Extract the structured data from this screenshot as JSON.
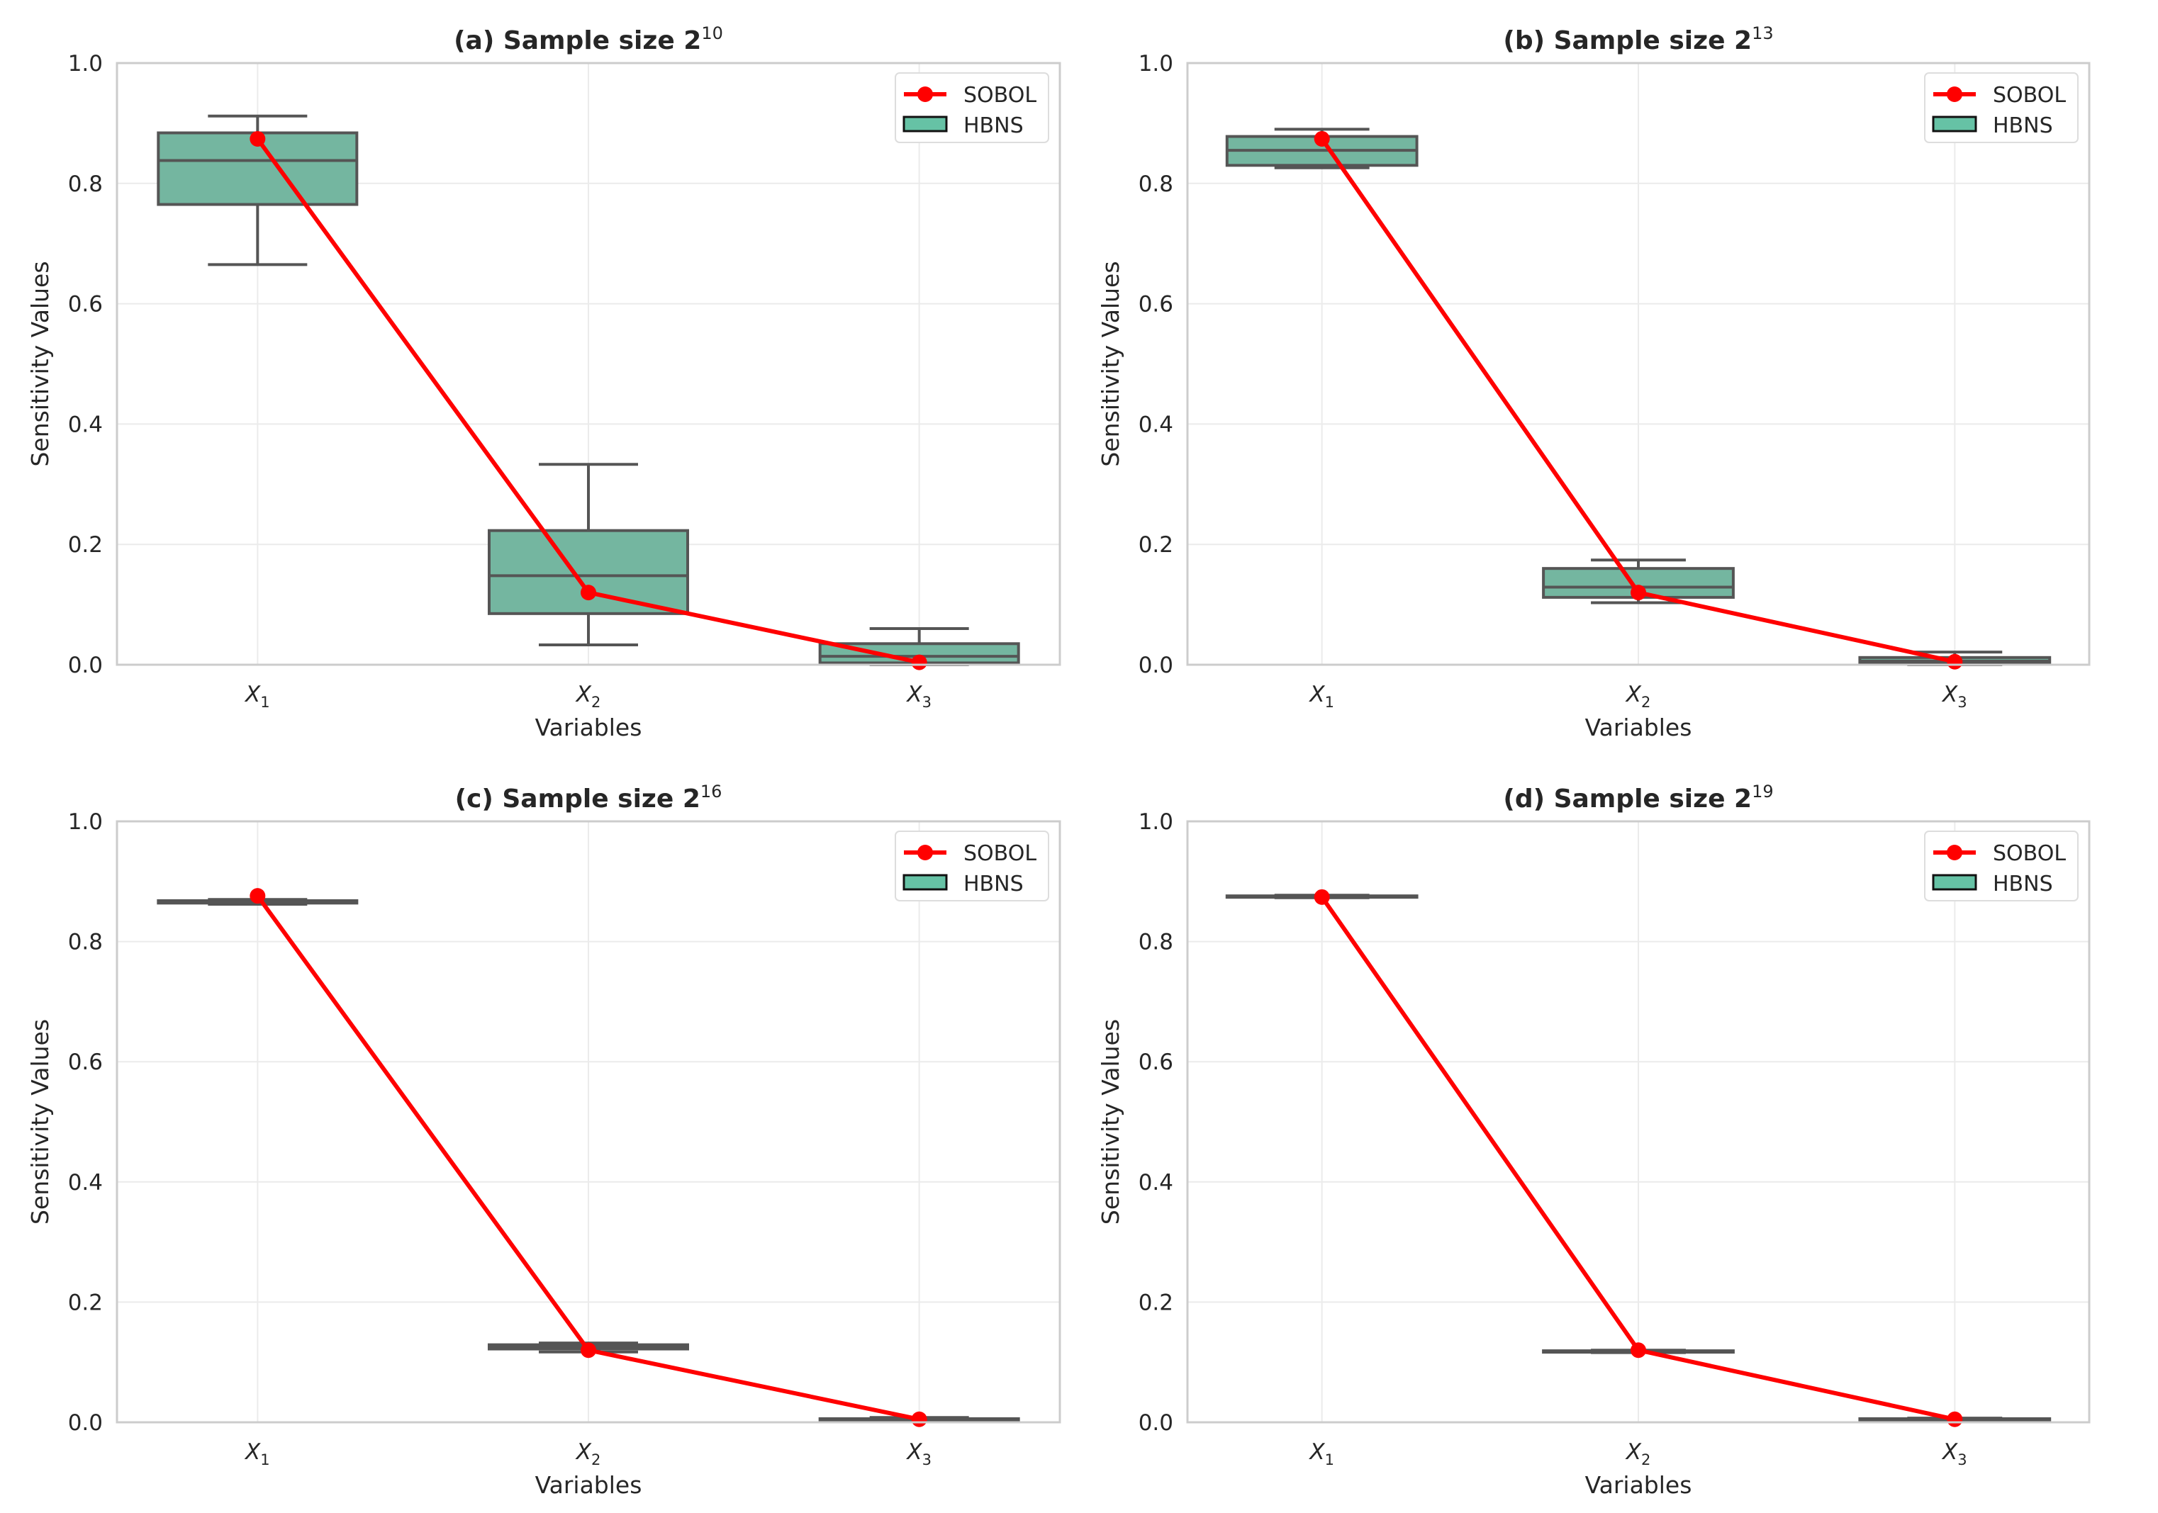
{
  "colors": {
    "sobol": "#ff0000",
    "box_fill": "#74b6a0",
    "box_edge": "#555555",
    "legend_patch": "#66c2a5",
    "grid": "#ebebeb",
    "spine": "#cccccc"
  },
  "chart_data": [
    {
      "type": "box",
      "title": "(a) Sample size 2",
      "title_sup": "10",
      "xlabel": "Variables",
      "ylabel": "Sensitivity Values",
      "categories": [
        "X",
        "X",
        "X"
      ],
      "category_subs": [
        "1",
        "2",
        "3"
      ],
      "ylim": [
        0,
        1.0
      ],
      "yticks": [
        "0.0",
        "0.2",
        "0.4",
        "0.6",
        "0.8",
        "1.0"
      ],
      "legend": [
        "SOBOL",
        "HBNS"
      ],
      "legend_position": "top-right",
      "grid": true,
      "boxes": [
        [
          0.665,
          0.765,
          0.838,
          0.884,
          0.912
        ],
        [
          0.033,
          0.085,
          0.148,
          0.223,
          0.333
        ],
        [
          0.0,
          0.003,
          0.014,
          0.035,
          0.06
        ]
      ],
      "sobol": [
        0.874,
        0.12,
        0.004
      ]
    },
    {
      "type": "box",
      "title": "(b) Sample size 2",
      "title_sup": "13",
      "xlabel": "Variables",
      "ylabel": "Sensitivity Values",
      "categories": [
        "X",
        "X",
        "X"
      ],
      "category_subs": [
        "1",
        "2",
        "3"
      ],
      "ylim": [
        0,
        1.0
      ],
      "yticks": [
        "0.0",
        "0.2",
        "0.4",
        "0.6",
        "0.8",
        "1.0"
      ],
      "legend": [
        "SOBOL",
        "HBNS"
      ],
      "legend_position": "top-right",
      "grid": true,
      "boxes": [
        [
          0.826,
          0.83,
          0.855,
          0.878,
          0.89
        ],
        [
          0.103,
          0.112,
          0.129,
          0.16,
          0.174
        ],
        [
          0.0,
          0.002,
          0.006,
          0.012,
          0.021
        ]
      ],
      "sobol": [
        0.874,
        0.12,
        0.005
      ]
    },
    {
      "type": "box",
      "title": "(c) Sample size 2",
      "title_sup": "16",
      "xlabel": "Variables",
      "ylabel": "Sensitivity Values",
      "categories": [
        "X",
        "X",
        "X"
      ],
      "category_subs": [
        "1",
        "2",
        "3"
      ],
      "ylim": [
        0,
        1.0
      ],
      "yticks": [
        "0.0",
        "0.2",
        "0.4",
        "0.6",
        "0.8",
        "1.0"
      ],
      "legend": [
        "SOBOL",
        "HBNS"
      ],
      "legend_position": "top-right",
      "grid": true,
      "boxes": [
        [
          0.862,
          0.864,
          0.866,
          0.868,
          0.87
        ],
        [
          0.117,
          0.122,
          0.125,
          0.129,
          0.132
        ],
        [
          0.003,
          0.004,
          0.005,
          0.006,
          0.008
        ]
      ],
      "sobol": [
        0.876,
        0.12,
        0.005
      ]
    },
    {
      "type": "box",
      "title": "(d) Sample size 2",
      "title_sup": "19",
      "xlabel": "Variables",
      "ylabel": "Sensitivity Values",
      "categories": [
        "X",
        "X",
        "X"
      ],
      "category_subs": [
        "1",
        "2",
        "3"
      ],
      "ylim": [
        0,
        1.0
      ],
      "yticks": [
        "0.0",
        "0.2",
        "0.4",
        "0.6",
        "0.8",
        "1.0"
      ],
      "legend": [
        "SOBOL",
        "HBNS"
      ],
      "legend_position": "top-right",
      "grid": true,
      "boxes": [
        [
          0.873,
          0.874,
          0.875,
          0.876,
          0.877
        ],
        [
          0.116,
          0.117,
          0.118,
          0.119,
          0.12
        ],
        [
          0.004,
          0.005,
          0.005,
          0.006,
          0.007
        ]
      ],
      "sobol": [
        0.874,
        0.12,
        0.005
      ]
    }
  ]
}
